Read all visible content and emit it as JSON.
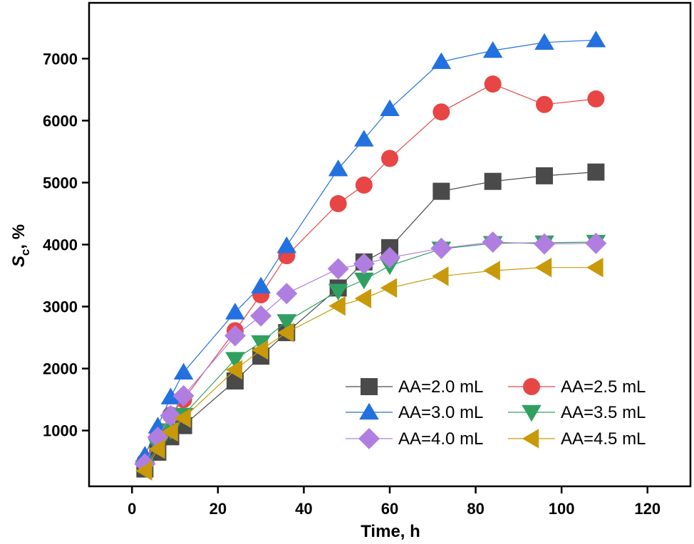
{
  "chart_data": {
    "type": "line",
    "title": "",
    "xlabel": "Time, h",
    "ylabel_main": "S",
    "ylabel_sub": "c",
    "ylabel_suffix": ", %",
    "xlim": [
      -10,
      130
    ],
    "ylim": [
      100,
      7900
    ],
    "x_ticks": [
      0,
      20,
      40,
      60,
      80,
      100,
      120
    ],
    "y_ticks": [
      1000,
      2000,
      3000,
      4000,
      5000,
      6000,
      7000
    ],
    "x_tick_labels": [
      "0",
      "20",
      "40",
      "60",
      "80",
      "100",
      "120"
    ],
    "y_tick_labels": [
      "1000",
      "2000",
      "3000",
      "4000",
      "5000",
      "6000",
      "7000"
    ],
    "grid": false,
    "legend_position": "bottom-right",
    "series": [
      {
        "name": "AA=2.0 mL",
        "marker": "square",
        "color": "#4a4a4a",
        "x": [
          3,
          6,
          9,
          12,
          24,
          30,
          36,
          48,
          54,
          60,
          72,
          84,
          96,
          108
        ],
        "y": [
          380,
          650,
          900,
          1080,
          1800,
          2200,
          2580,
          3300,
          3720,
          3950,
          4860,
          5020,
          5110,
          5170
        ]
      },
      {
        "name": "AA=2.5 mL",
        "marker": "circle",
        "color": "#e84545",
        "x": [
          3,
          6,
          9,
          12,
          24,
          30,
          36,
          48,
          54,
          60,
          72,
          84,
          96,
          108
        ],
        "y": [
          500,
          900,
          1250,
          1500,
          2610,
          3190,
          3820,
          4660,
          4960,
          5390,
          6140,
          6590,
          6260,
          6350
        ]
      },
      {
        "name": "AA=3.0 mL",
        "marker": "triangle-up",
        "color": "#2370e0",
        "x": [
          3,
          6,
          9,
          12,
          24,
          30,
          36,
          48,
          54,
          60,
          72,
          84,
          96,
          108
        ],
        "y": [
          600,
          1070,
          1540,
          1940,
          2910,
          3330,
          3980,
          5220,
          5700,
          6190,
          6950,
          7130,
          7260,
          7300
        ]
      },
      {
        "name": "AA=3.5 mL",
        "marker": "triangle-down",
        "color": "#30a060",
        "x": [
          3,
          6,
          9,
          12,
          24,
          30,
          36,
          48,
          54,
          60,
          72,
          84,
          96,
          108
        ],
        "y": [
          400,
          750,
          1000,
          1250,
          2150,
          2420,
          2760,
          3250,
          3430,
          3660,
          3930,
          4020,
          4030,
          4040
        ]
      },
      {
        "name": "AA=4.0 mL",
        "marker": "diamond",
        "color": "#b07ee0",
        "x": [
          3,
          6,
          9,
          12,
          24,
          30,
          36,
          48,
          54,
          60,
          72,
          84,
          96,
          108
        ],
        "y": [
          460,
          890,
          1240,
          1560,
          2530,
          2850,
          3210,
          3610,
          3690,
          3790,
          3940,
          4040,
          4010,
          4020
        ]
      },
      {
        "name": "AA=4.5 mL",
        "marker": "triangle-left",
        "color": "#c89a0a",
        "x": [
          3,
          6,
          9,
          12,
          24,
          30,
          36,
          48,
          54,
          60,
          72,
          84,
          96,
          108
        ],
        "y": [
          350,
          700,
          980,
          1200,
          1980,
          2300,
          2580,
          3010,
          3130,
          3300,
          3490,
          3580,
          3630,
          3630
        ]
      }
    ]
  }
}
